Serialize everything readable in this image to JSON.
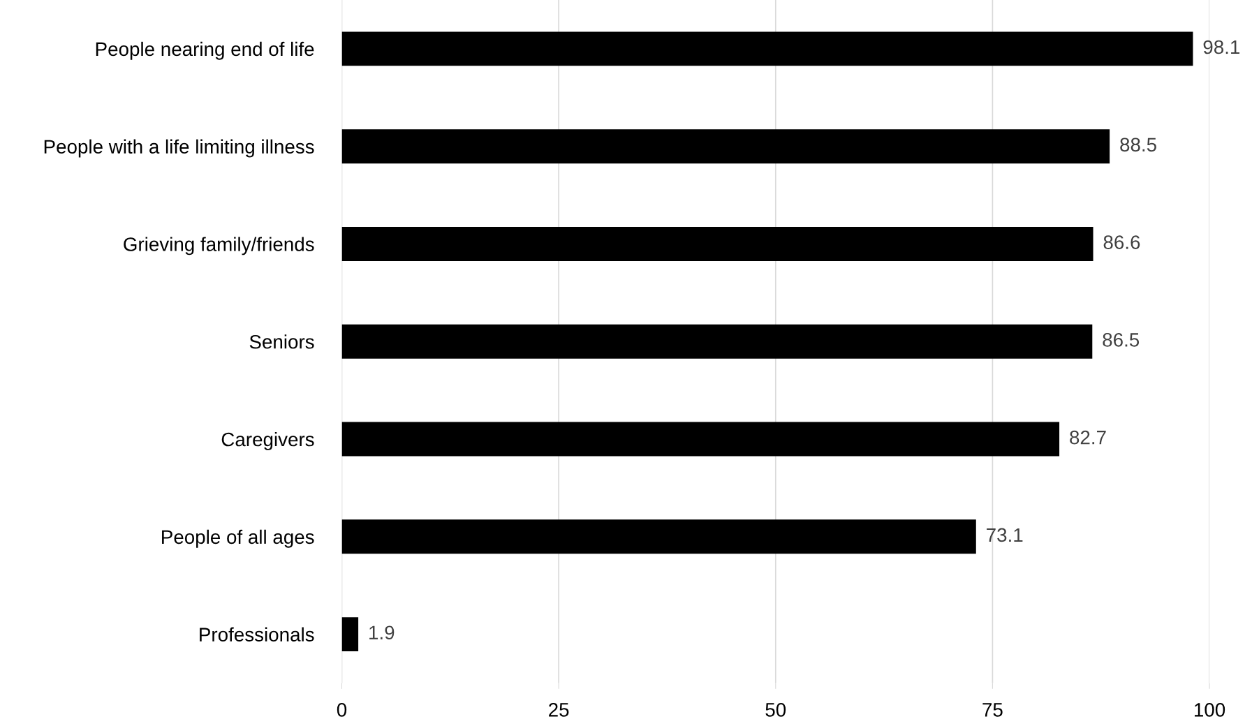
{
  "chart_data": {
    "type": "bar",
    "orientation": "horizontal",
    "categories": [
      "People nearing end of life",
      "People with a life limiting illness",
      "Grieving family/friends",
      "Seniors",
      "Caregivers",
      "People of all ages",
      "Professionals"
    ],
    "values": [
      98.1,
      88.5,
      86.6,
      86.5,
      82.7,
      73.1,
      1.9
    ],
    "color": "#000000",
    "xlim": [
      0,
      100
    ],
    "xticks": [
      0,
      25,
      50,
      75,
      100
    ],
    "grid": "x",
    "data_labels": true
  }
}
